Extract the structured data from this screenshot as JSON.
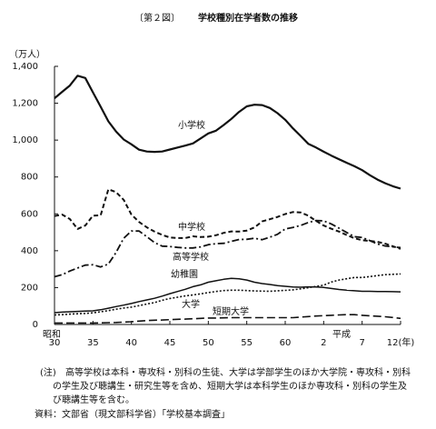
{
  "chart_data": {
    "type": "line",
    "figure_label": "〔第２図〕",
    "title": "学校種別在学者数の推移",
    "y_label": "（万人）",
    "era_labels": [
      "昭和",
      "平成"
    ],
    "categories": [
      "30",
      null,
      null,
      null,
      null,
      "35",
      null,
      null,
      null,
      null,
      "40",
      null,
      null,
      null,
      null,
      "45",
      null,
      null,
      null,
      null,
      "50",
      null,
      null,
      null,
      null,
      "55",
      null,
      null,
      null,
      null,
      "60",
      null,
      null,
      null,
      null,
      "2",
      null,
      null,
      null,
      null,
      "7",
      null,
      null,
      null,
      null,
      "12(年)"
    ],
    "ylim": [
      0,
      1400
    ],
    "yticks": [
      0,
      200,
      400,
      600,
      800,
      {
        "value": 1000,
        "label": "1,000"
      },
      {
        "value": 1200,
        "label": "1,200"
      },
      {
        "value": 1400,
        "label": "1,400"
      }
    ],
    "series": [
      {
        "name": "小学校",
        "color": "#111111",
        "dash": "none",
        "width": 2.2,
        "values": [
          1227,
          1262,
          1296,
          1349,
          1337,
          1259,
          1181,
          1102,
          1047,
          1003,
          977,
          948,
          938,
          936,
          938,
          949,
          960,
          970,
          982,
          1009,
          1036,
          1051,
          1082,
          1115,
          1153,
          1183,
          1192,
          1190,
          1174,
          1146,
          1110,
          1064,
          1023,
          980,
          960,
          937,
          916,
          896,
          877,
          858,
          837,
          810,
          786,
          766,
          750,
          737
        ]
      },
      {
        "name": "中学校",
        "color": "#111111",
        "dash": "5,3",
        "width": 2,
        "values": [
          588,
          596,
          572,
          518,
          537,
          590,
          592,
          733,
          718,
          676,
          596,
          556,
          527,
          504,
          486,
          472,
          469,
          469,
          478,
          474,
          476,
          484,
          497,
          505,
          504,
          509,
          526,
          559,
          571,
          583,
          599,
          610,
          608,
          590,
          562,
          537,
          519,
          504,
          485,
          468,
          457,
          453,
          448,
          438,
          424,
          410
        ]
      },
      {
        "name": "高等学校",
        "color": "#111111",
        "dash": "8,3,2,3",
        "width": 1.8,
        "values": [
          259,
          270,
          290,
          306,
          322,
          324,
          312,
          328,
          390,
          468,
          507,
          507,
          476,
          444,
          425,
          423,
          418,
          415,
          415,
          421,
          433,
          438,
          440,
          451,
          461,
          462,
          468,
          460,
          473,
          489,
          518,
          526,
          537,
          553,
          564,
          562,
          545,
          522,
          499,
          476,
          472,
          455,
          437,
          426,
          421,
          417
        ]
      },
      {
        "name": "幼稚園",
        "color": "#111111",
        "dash": "none",
        "width": 1.5,
        "values": [
          64,
          67,
          69,
          71,
          73,
          74,
          80,
          88,
          97,
          105,
          114,
          124,
          133,
          142,
          154,
          167,
          179,
          191,
          205,
          215,
          229,
          237,
          245,
          250,
          248,
          241,
          229,
          222,
          217,
          211,
          207,
          203,
          202,
          204,
          203,
          201,
          195,
          190,
          186,
          183,
          180,
          180,
          179,
          179,
          178,
          177
        ]
      },
      {
        "name": "大学",
        "color": "#111111",
        "dash": "2,2",
        "width": 1.6,
        "values": [
          52,
          53,
          56,
          58,
          60,
          63,
          69,
          75,
          83,
          89,
          94,
          102,
          111,
          119,
          131,
          141,
          148,
          155,
          160,
          166,
          173,
          179,
          184,
          186,
          186,
          184,
          182,
          181,
          180,
          183,
          185,
          188,
          193,
          199,
          207,
          213,
          230,
          241,
          248,
          255,
          255,
          260,
          265,
          270,
          272,
          274
        ]
      },
      {
        "name": "短期大学",
        "color": "#111111",
        "dash": "9,4",
        "width": 1.6,
        "values": [
          8,
          8,
          8,
          8,
          8,
          8,
          9,
          10,
          11,
          13,
          15,
          18,
          21,
          23,
          24,
          26,
          28,
          29,
          31,
          33,
          35,
          35,
          36,
          37,
          37,
          37,
          37,
          37,
          37,
          37,
          37,
          37,
          40,
          43,
          46,
          48,
          50,
          52,
          53,
          53,
          50,
          47,
          45,
          42,
          38,
          33
        ]
      }
    ],
    "notes": {
      "label": "(注)",
      "lines": [
        "高等学校は本科・専攻科・別科の生徒、大学は学部学生のほか大学院・専攻科・別科",
        "の学生及び聴講生・研究生等を含め、短期大学は本科学生のほか専攻科・別科の学生及",
        "び聴講生等を含む。"
      ]
    },
    "source": "資料：文部省（現文部科学省）「学校基本調査」"
  }
}
